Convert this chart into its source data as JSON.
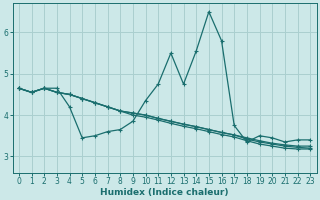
{
  "xlabel": "Humidex (Indice chaleur)",
  "background_color": "#cce8e8",
  "grid_color": "#aacfcf",
  "line_color": "#1a6e6e",
  "xlim": [
    -0.5,
    23.5
  ],
  "ylim": [
    2.6,
    6.7
  ],
  "xticks": [
    0,
    1,
    2,
    3,
    4,
    5,
    6,
    7,
    8,
    9,
    10,
    11,
    12,
    13,
    14,
    15,
    16,
    17,
    18,
    19,
    20,
    21,
    22,
    23
  ],
  "yticks": [
    3,
    4,
    5,
    6
  ],
  "series": [
    [
      4.65,
      4.55,
      4.65,
      4.65,
      4.2,
      3.45,
      3.5,
      3.6,
      3.65,
      3.85,
      4.35,
      4.75,
      5.5,
      4.75,
      5.55,
      6.5,
      5.8,
      3.75,
      3.35,
      3.5,
      3.45,
      3.35,
      3.4,
      3.4
    ],
    [
      4.65,
      4.55,
      4.65,
      4.55,
      4.5,
      4.4,
      4.3,
      4.2,
      4.1,
      4.05,
      4.0,
      3.92,
      3.85,
      3.78,
      3.72,
      3.65,
      3.58,
      3.52,
      3.45,
      3.38,
      3.32,
      3.28,
      3.25,
      3.25
    ],
    [
      4.65,
      4.55,
      4.65,
      4.55,
      4.5,
      4.4,
      4.3,
      4.2,
      4.1,
      4.05,
      4.0,
      3.92,
      3.85,
      3.78,
      3.72,
      3.65,
      3.58,
      3.52,
      3.42,
      3.35,
      3.3,
      3.25,
      3.22,
      3.2
    ],
    [
      4.65,
      4.55,
      4.65,
      4.55,
      4.5,
      4.4,
      4.3,
      4.2,
      4.1,
      4.0,
      3.95,
      3.88,
      3.8,
      3.73,
      3.67,
      3.6,
      3.53,
      3.47,
      3.38,
      3.3,
      3.25,
      3.2,
      3.18,
      3.18
    ]
  ]
}
